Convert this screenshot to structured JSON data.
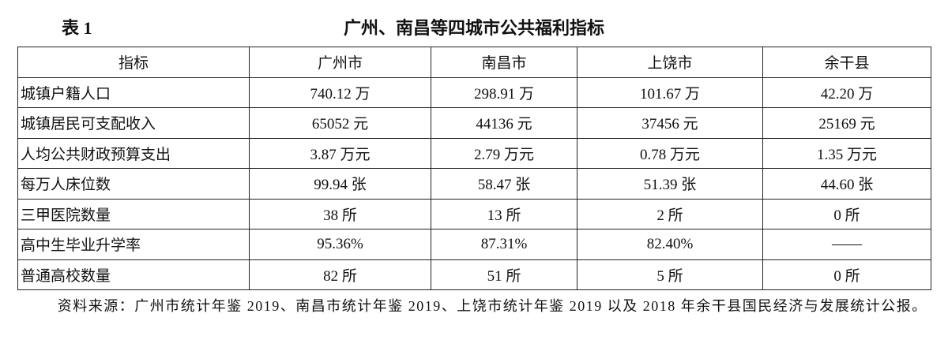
{
  "header": {
    "label": "表 1",
    "title": "广州、南昌等四城市公共福利指标"
  },
  "table": {
    "columns": [
      "指标",
      "广州市",
      "南昌市",
      "上饶市",
      "余干县"
    ],
    "rows": [
      [
        "城镇户籍人口",
        "740.12 万",
        "298.91 万",
        "101.67 万",
        "42.20 万"
      ],
      [
        "城镇居民可支配收入",
        "65052 元",
        "44136 元",
        "37456 元",
        "25169 元"
      ],
      [
        "人均公共财政预算支出",
        "3.87 万元",
        "2.79 万元",
        "0.78 万元",
        "1.35 万元"
      ],
      [
        "每万人床位数",
        "99.94 张",
        "58.47 张",
        "51.39 张",
        "44.60 张"
      ],
      [
        "三甲医院数量",
        "38 所",
        "13 所",
        "2 所",
        "0 所"
      ],
      [
        "高中生毕业升学率",
        "95.36%",
        "87.31%",
        "82.40%",
        "——"
      ],
      [
        "普通高校数量",
        "82 所",
        "51 所",
        "5 所",
        "0 所"
      ]
    ]
  },
  "source": "资料来源：广州市统计年鉴 2019、南昌市统计年鉴 2019、上饶市统计年鉴 2019 以及 2018 年余干县国民经济与发展统计公报。"
}
